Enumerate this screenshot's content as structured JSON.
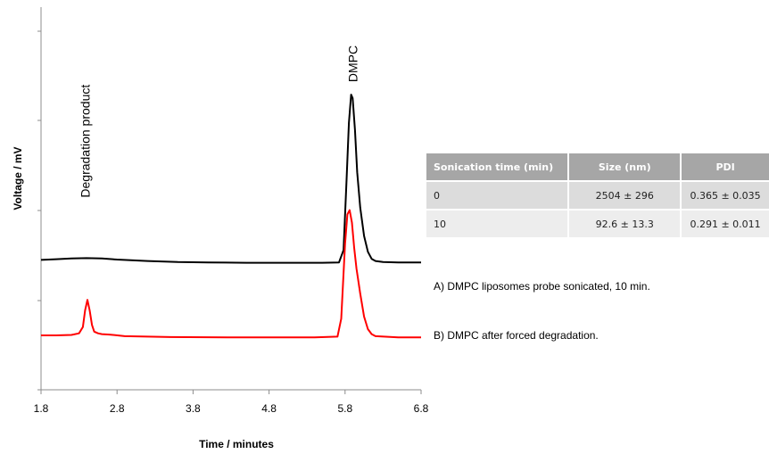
{
  "chart_data": {
    "type": "line",
    "xlabel": "Time / minutes",
    "ylabel": "Voltage / mV",
    "xlim": [
      1.8,
      6.8
    ],
    "xticks": [
      "1.8",
      "2.8",
      "3.8",
      "4.8",
      "5.8",
      "6.8"
    ],
    "y_tick_labels_shown": false,
    "grid": false,
    "series": [
      {
        "name": "A)  DMPC liposomes probe sonicated, 10 min.",
        "color": "#000000",
        "x": [
          1.8,
          1.9,
          2.0,
          2.2,
          2.4,
          2.6,
          2.8,
          3.2,
          3.6,
          4.0,
          4.5,
          5.0,
          5.5,
          5.72,
          5.78,
          5.82,
          5.85,
          5.88,
          5.9,
          5.93,
          5.96,
          6.0,
          6.05,
          6.1,
          6.15,
          6.2,
          6.3,
          6.5,
          6.8
        ],
        "y": [
          5.2,
          5.3,
          5.4,
          5.6,
          5.7,
          5.6,
          5.3,
          4.9,
          4.6,
          4.5,
          4.4,
          4.4,
          4.4,
          4.5,
          8.0,
          28.0,
          44.0,
          52.0,
          51.0,
          42.0,
          30.0,
          20.0,
          12.0,
          7.5,
          5.5,
          4.9,
          4.6,
          4.5,
          4.5
        ]
      },
      {
        "name": "B) DMPC after forced degradation.",
        "color": "#ff0000",
        "x": [
          1.8,
          2.0,
          2.2,
          2.3,
          2.35,
          2.38,
          2.41,
          2.44,
          2.47,
          2.5,
          2.55,
          2.6,
          2.7,
          2.9,
          3.5,
          4.5,
          5.4,
          5.7,
          5.75,
          5.8,
          5.83,
          5.86,
          5.89,
          5.92,
          5.95,
          6.0,
          6.05,
          6.1,
          6.15,
          6.2,
          6.5,
          6.8
        ],
        "y": [
          0.0,
          0.0,
          0.1,
          0.5,
          2.0,
          6.0,
          8.5,
          6.0,
          2.5,
          0.9,
          0.5,
          0.3,
          0.2,
          -0.2,
          -0.4,
          -0.5,
          -0.5,
          -0.3,
          4.0,
          22.0,
          29.0,
          30.0,
          27.0,
          21.0,
          16.0,
          10.0,
          4.5,
          1.5,
          0.3,
          -0.2,
          -0.5,
          -0.5
        ]
      }
    ],
    "annotations": [
      {
        "text": "Degradation product",
        "x": 2.38,
        "series": 1,
        "rotation": -90
      },
      {
        "text": "DMPC",
        "x": 5.9,
        "series": 0,
        "rotation": -90
      }
    ],
    "table": {
      "headers": [
        "Sonication time (min)",
        "Size (nm)",
        "PDI"
      ],
      "rows": [
        [
          "0",
          "2504 ± 296",
          "0.365 ± 0.035"
        ],
        [
          "10",
          "92.6 ± 13.3",
          "0.291 ± 0.011"
        ]
      ]
    }
  }
}
